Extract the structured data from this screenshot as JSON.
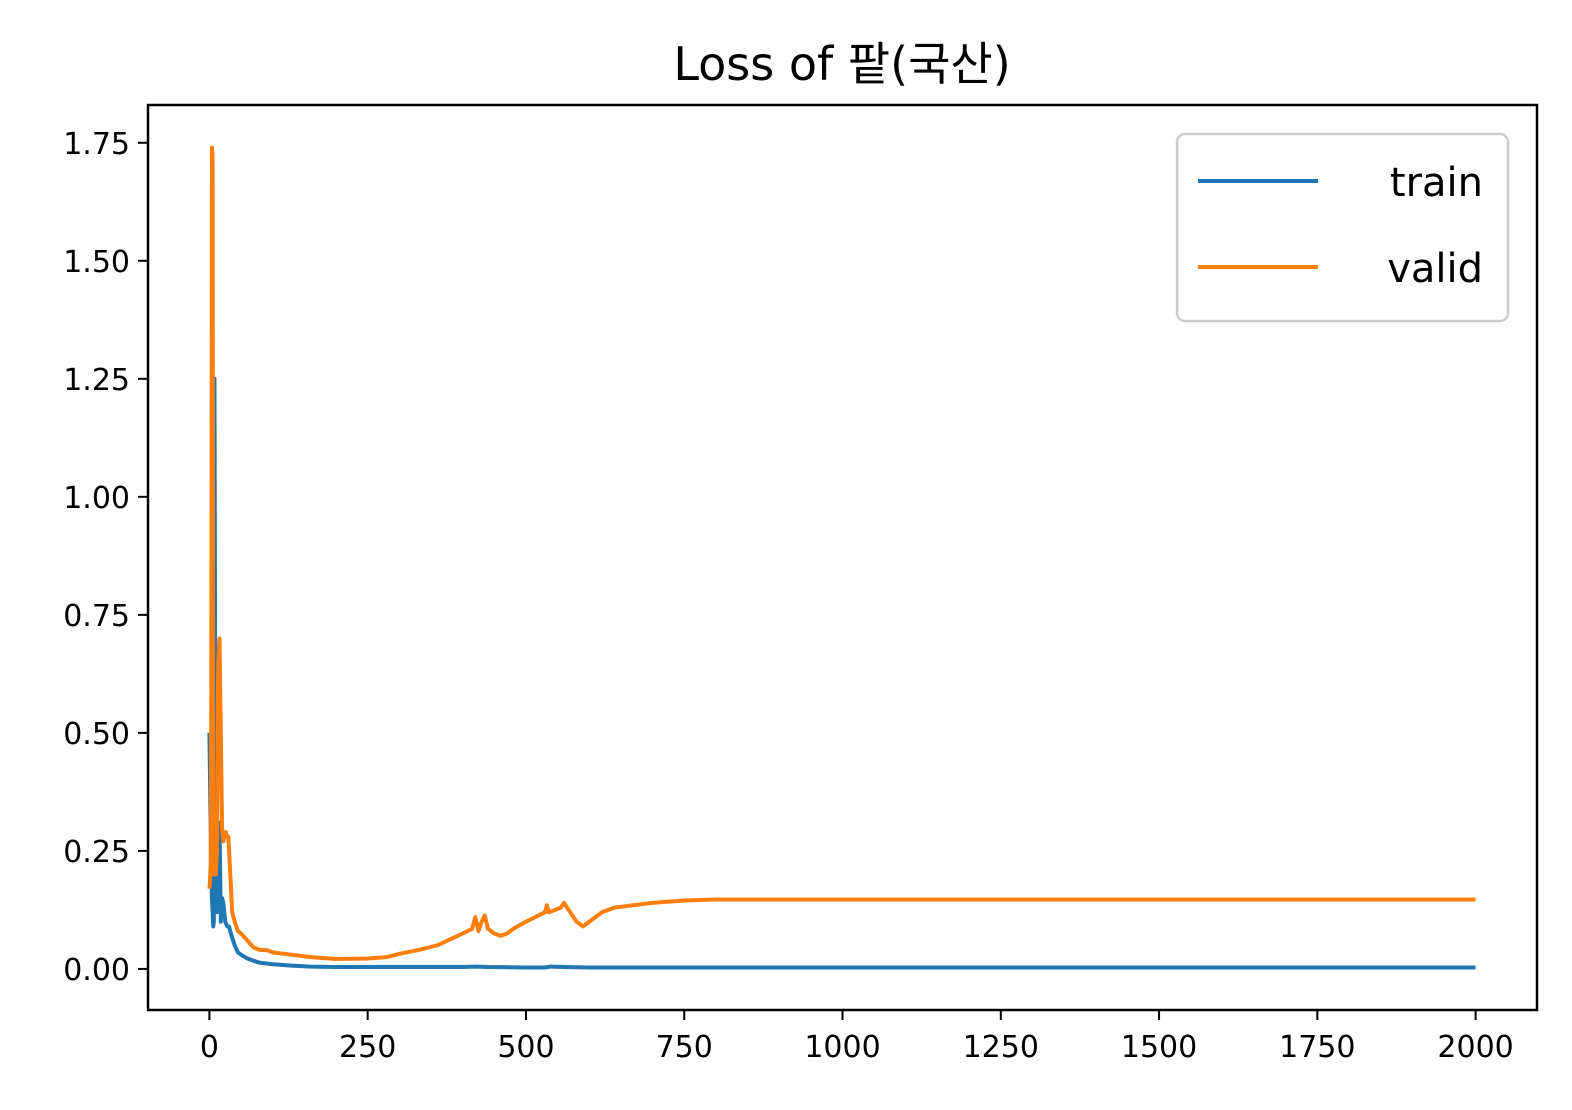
{
  "chart_data": {
    "type": "line",
    "title": "Loss of 팥(국산)",
    "xlabel": "",
    "ylabel": "",
    "xlim": [
      -97,
      2097
    ],
    "ylim": [
      -0.087,
      1.83
    ],
    "x_ticks": [
      0,
      250,
      500,
      750,
      1000,
      1250,
      1500,
      1750,
      2000
    ],
    "x_tick_labels": [
      "0",
      "250",
      "500",
      "750",
      "1000",
      "1250",
      "1500",
      "1750",
      "2000"
    ],
    "y_ticks": [
      0,
      0.25,
      0.5,
      0.75,
      1.0,
      1.25,
      1.5,
      1.75
    ],
    "y_tick_labels": [
      "0.00",
      "0.25",
      "0.50",
      "0.75",
      "1.00",
      "1.25",
      "1.50",
      "1.75"
    ],
    "grid": false,
    "legend_position": "top-right",
    "series": [
      {
        "name": "train",
        "color": "#1f77b4",
        "x": [
          0,
          1,
          2,
          3,
          4,
          5,
          6,
          7,
          8,
          10,
          12,
          14,
          16,
          18,
          20,
          22,
          25,
          28,
          31,
          35,
          40,
          45,
          50,
          60,
          70,
          80,
          100,
          130,
          160,
          200,
          250,
          300,
          350,
          400,
          420,
          440,
          500,
          530,
          540,
          560,
          600,
          700,
          800,
          1000,
          1250,
          1500,
          1750,
          2000
        ],
        "y": [
          0.5,
          0.4,
          0.3,
          0.2,
          0.15,
          0.12,
          0.09,
          0.1,
          1.25,
          0.18,
          0.12,
          0.2,
          0.31,
          0.1,
          0.15,
          0.14,
          0.1,
          0.09,
          0.09,
          0.07,
          0.05,
          0.035,
          0.03,
          0.022,
          0.017,
          0.013,
          0.01,
          0.007,
          0.005,
          0.004,
          0.004,
          0.004,
          0.004,
          0.004,
          0.005,
          0.004,
          0.003,
          0.003,
          0.005,
          0.004,
          0.003,
          0.003,
          0.003,
          0.003,
          0.003,
          0.003,
          0.003,
          0.003
        ]
      },
      {
        "name": "valid",
        "color": "#ff7f0e",
        "x": [
          0,
          1,
          2,
          3,
          4,
          5,
          6,
          7,
          8,
          10,
          12,
          14,
          16,
          18,
          20,
          22,
          24,
          26,
          28,
          30,
          33,
          36,
          40,
          45,
          50,
          60,
          70,
          80,
          90,
          100,
          130,
          160,
          200,
          250,
          280,
          300,
          330,
          360,
          400,
          415,
          420,
          425,
          430,
          435,
          440,
          450,
          460,
          470,
          480,
          500,
          530,
          533,
          536,
          550,
          555,
          560,
          570,
          580,
          590,
          600,
          620,
          640,
          700,
          750,
          800,
          1000,
          1250,
          1500,
          1750,
          2000
        ],
        "y": [
          0.17,
          0.19,
          0.22,
          0.6,
          1.74,
          1.72,
          0.3,
          0.2,
          0.22,
          0.2,
          0.25,
          0.65,
          0.7,
          0.5,
          0.3,
          0.27,
          0.28,
          0.29,
          0.28,
          0.28,
          0.2,
          0.12,
          0.1,
          0.08,
          0.075,
          0.06,
          0.045,
          0.04,
          0.04,
          0.035,
          0.03,
          0.025,
          0.021,
          0.022,
          0.025,
          0.032,
          0.04,
          0.05,
          0.075,
          0.085,
          0.11,
          0.08,
          0.1,
          0.113,
          0.085,
          0.075,
          0.07,
          0.075,
          0.085,
          0.1,
          0.12,
          0.135,
          0.12,
          0.127,
          0.13,
          0.14,
          0.12,
          0.1,
          0.09,
          0.1,
          0.12,
          0.13,
          0.14,
          0.145,
          0.147,
          0.147,
          0.147,
          0.147,
          0.147,
          0.147
        ]
      }
    ]
  }
}
